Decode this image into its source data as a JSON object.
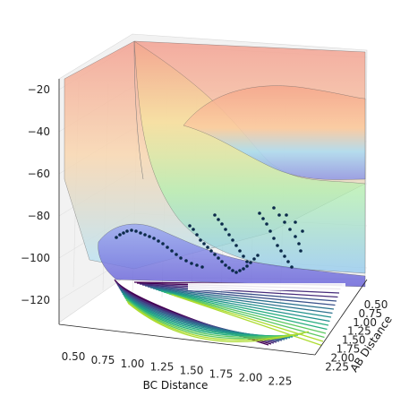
{
  "chart_data": {
    "type": "surface-3d-with-contour-and-scatter",
    "xlabel": "BC Distance",
    "ylabel": "AB Distance",
    "zlabel": "",
    "x_ticks": [
      "0.50",
      "0.75",
      "1.00",
      "1.25",
      "1.50",
      "1.75",
      "2.00",
      "2.25"
    ],
    "y_ticks": [
      "0.50",
      "0.75",
      "1.00",
      "1.25",
      "1.50",
      "1.75",
      "2.00",
      "2.25"
    ],
    "z_ticks": [
      "−20",
      "−40",
      "−60",
      "−80",
      "−100",
      "−120"
    ],
    "xlim": [
      0.4,
      2.4
    ],
    "ylim": [
      0.4,
      2.3
    ],
    "zlim": [
      -130,
      -15
    ],
    "surface_colormap": "jet",
    "contour_colormap": "viridis",
    "scatter_color": "#0b2a4a",
    "grid": true,
    "trajectory_samples": [
      {
        "x": 0.74,
        "y": 2.2,
        "z": -103
      },
      {
        "x": 0.8,
        "y": 1.6,
        "z": -100
      },
      {
        "x": 1.0,
        "y": 1.0,
        "z": -98
      },
      {
        "x": 1.3,
        "y": 0.8,
        "z": -99
      },
      {
        "x": 1.6,
        "y": 0.74,
        "z": -102
      },
      {
        "x": 2.0,
        "y": 0.74,
        "z": -103
      }
    ]
  }
}
